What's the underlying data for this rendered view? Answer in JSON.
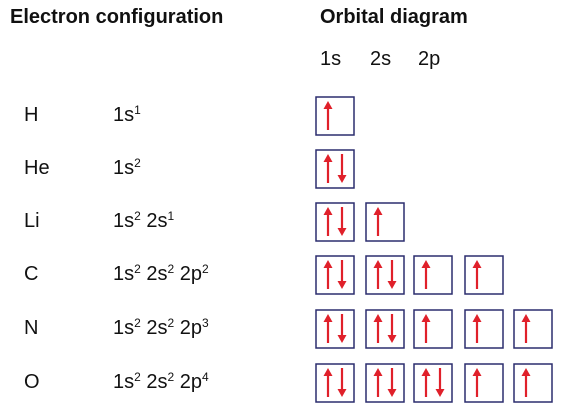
{
  "headers": {
    "left": "Electron configuration",
    "right": "Orbital diagram"
  },
  "orbital_columns": [
    "1s",
    "2s",
    "2p"
  ],
  "colors": {
    "box_border": "#2b2d6e",
    "arrow": "#e0202a"
  },
  "rows": [
    {
      "element": "H",
      "config": [
        {
          "orb": "1s",
          "e": "1"
        }
      ],
      "boxes": [
        "up"
      ]
    },
    {
      "element": "He",
      "config": [
        {
          "orb": "1s",
          "e": "2"
        }
      ],
      "boxes": [
        "updown"
      ]
    },
    {
      "element": "Li",
      "config": [
        {
          "orb": "1s",
          "e": "2"
        },
        {
          "orb": "2s",
          "e": "1"
        }
      ],
      "boxes": [
        "updown",
        "up"
      ]
    },
    {
      "element": "C",
      "config": [
        {
          "orb": "1s",
          "e": "2"
        },
        {
          "orb": "2s",
          "e": "2"
        },
        {
          "orb": "2p",
          "e": "2"
        }
      ],
      "boxes": [
        "updown",
        "updown",
        "up",
        "up"
      ]
    },
    {
      "element": "N",
      "config": [
        {
          "orb": "1s",
          "e": "2"
        },
        {
          "orb": "2s",
          "e": "2"
        },
        {
          "orb": "2p",
          "e": "3"
        }
      ],
      "boxes": [
        "updown",
        "updown",
        "up",
        "up",
        "up"
      ]
    },
    {
      "element": "O",
      "config": [
        {
          "orb": "1s",
          "e": "2"
        },
        {
          "orb": "2s",
          "e": "2"
        },
        {
          "orb": "2p",
          "e": "4"
        }
      ],
      "boxes": [
        "updown",
        "updown",
        "updown",
        "up",
        "up"
      ]
    }
  ]
}
